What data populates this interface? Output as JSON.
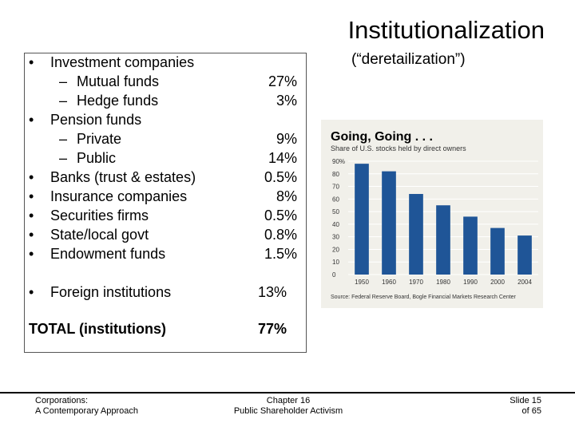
{
  "slide": {
    "title": "Institutionalization",
    "subtitle": "(“deretailization”)"
  },
  "list": {
    "bullet": "•",
    "dash": "–",
    "investment_companies": "Investment companies",
    "mutual_funds": "Mutual funds",
    "mutual_funds_value": "27%",
    "hedge_funds": "Hedge funds",
    "hedge_funds_value": "3%",
    "pension_funds": "Pension funds",
    "private": "Private",
    "private_value": "9%",
    "public": "Public",
    "public_value": "14%",
    "banks": "Banks (trust & estates)",
    "banks_value": "0.5%",
    "insurance": "Insurance companies",
    "insurance_value": "8%",
    "securities": "Securities firms",
    "securities_value": "0.5%",
    "state_local": "State/local govt",
    "state_local_value": "0.8%",
    "endowment": "Endowment funds",
    "endowment_value": "1.5%",
    "foreign": "Foreign institutions",
    "foreign_value": "13%",
    "total_label": "TOTAL (institutions)",
    "total_value": "77%"
  },
  "chart_data": {
    "type": "bar",
    "title": "Going, Going . . .",
    "subtitle": "Share of U.S. stocks held by direct owners",
    "categories": [
      "1950",
      "1960",
      "1970",
      "1980",
      "1990",
      "2000",
      "2004"
    ],
    "values": [
      88,
      82,
      64,
      55,
      46,
      37,
      31
    ],
    "ylim": [
      0,
      90
    ],
    "yticks": [
      "0",
      "10",
      "20",
      "30",
      "40",
      "50",
      "60",
      "70",
      "80",
      "90%"
    ],
    "source": "Source: Federal Reserve Board, Bogle Financial Markets Research Center",
    "colors": {
      "bar": "#1f5597",
      "background": "#f1f0ea",
      "grid": "#ffffff"
    },
    "grid": true
  },
  "footer": {
    "left_line1": "Corporations:",
    "left_line2": "A Contemporary Approach",
    "mid_line1": "Chapter 16",
    "mid_line2": "Public Shareholder Activism",
    "right_line1": "Slide 15",
    "right_line2": "of 65"
  }
}
